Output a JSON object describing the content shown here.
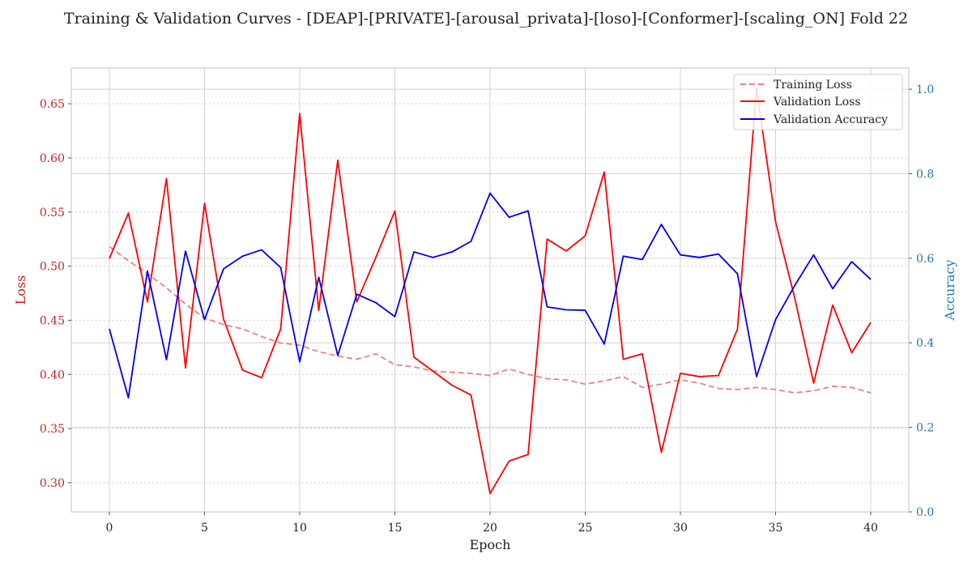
{
  "chart_data": {
    "type": "line",
    "title": "Training & Validation Curves - [DEAP]-[PRIVATE]-[arousal_privata]-[loso]-[Conformer]-[scaling_ON] Fold 22",
    "xlabel": "Epoch",
    "ylabel_left": "Loss",
    "ylabel_right": "Accuracy",
    "xlim": [
      -2,
      42
    ],
    "ylim_left": [
      0.273,
      0.683
    ],
    "ylim_right": [
      0.0,
      1.05
    ],
    "x_ticks": [
      0,
      5,
      10,
      15,
      20,
      25,
      30,
      35,
      40
    ],
    "y_ticks_left": [
      0.3,
      0.35,
      0.4,
      0.45,
      0.5,
      0.55,
      0.6,
      0.65
    ],
    "y_ticks_right": [
      0.0,
      0.2,
      0.4,
      0.6,
      0.8,
      1.0
    ],
    "grid": true,
    "legend_position": "top-right",
    "colors": {
      "left_axis": "#cc2222",
      "right_axis": "#1f77b4",
      "training_loss": "#f08080",
      "validation_loss": "#ff0000",
      "validation_accuracy": "#0000ee"
    },
    "x": [
      0,
      1,
      2,
      3,
      4,
      5,
      6,
      7,
      8,
      9,
      10,
      11,
      12,
      13,
      14,
      15,
      16,
      17,
      18,
      19,
      20,
      21,
      22,
      23,
      24,
      25,
      26,
      27,
      28,
      29,
      30,
      31,
      32,
      33,
      34,
      35,
      36,
      37,
      38,
      39,
      40
    ],
    "series": [
      {
        "name": "Training Loss",
        "axis": "left",
        "style": "dashed",
        "values": [
          0.518,
          0.505,
          0.493,
          0.48,
          0.465,
          0.452,
          0.446,
          0.442,
          0.435,
          0.429,
          0.427,
          0.421,
          0.417,
          0.414,
          0.419,
          0.409,
          0.407,
          0.403,
          0.402,
          0.401,
          0.399,
          0.405,
          0.4,
          0.396,
          0.395,
          0.391,
          0.394,
          0.398,
          0.388,
          0.391,
          0.395,
          0.392,
          0.387,
          0.386,
          0.388,
          0.386,
          0.383,
          0.385,
          0.389,
          0.388,
          0.383
        ]
      },
      {
        "name": "Validation Loss",
        "axis": "left",
        "style": "solid",
        "values": [
          0.507,
          0.549,
          0.467,
          0.581,
          0.406,
          0.558,
          0.451,
          0.404,
          0.397,
          0.442,
          0.641,
          0.459,
          0.598,
          0.467,
          0.508,
          0.551,
          0.416,
          0.403,
          0.39,
          0.381,
          0.29,
          0.32,
          0.326,
          0.525,
          0.514,
          0.528,
          0.587,
          0.414,
          0.419,
          0.328,
          0.401,
          0.398,
          0.399,
          0.442,
          0.664,
          0.541,
          0.471,
          0.392,
          0.464,
          0.42,
          0.448
        ]
      },
      {
        "name": "Validation Accuracy",
        "axis": "right",
        "style": "solid",
        "values": [
          0.433,
          0.27,
          0.57,
          0.36,
          0.617,
          0.455,
          0.575,
          0.605,
          0.62,
          0.578,
          0.355,
          0.555,
          0.37,
          0.515,
          0.495,
          0.462,
          0.615,
          0.602,
          0.615,
          0.64,
          0.754,
          0.697,
          0.712,
          0.485,
          0.478,
          0.477,
          0.397,
          0.605,
          0.597,
          0.68,
          0.608,
          0.602,
          0.61,
          0.563,
          0.32,
          0.455,
          0.535,
          0.608,
          0.528,
          0.592,
          0.55
        ]
      }
    ]
  }
}
